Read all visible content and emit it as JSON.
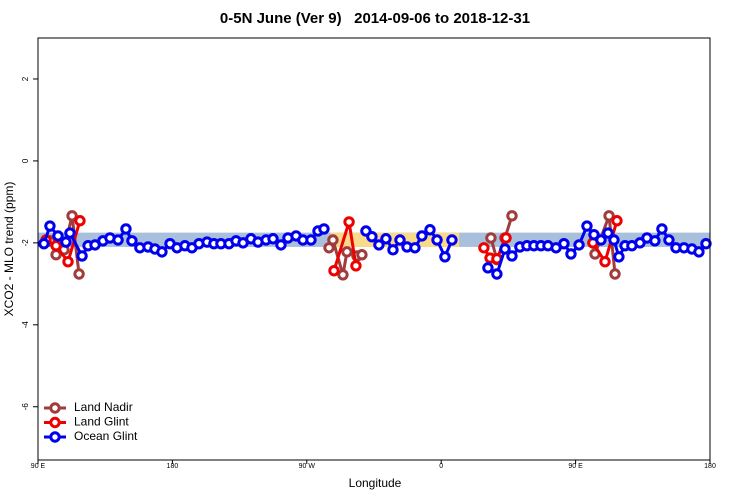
{
  "chart_data": {
    "type": "line",
    "title": "0-5N June (Ver 9)   2014-09-06 to 2018-12-31",
    "x_label": "Longitude",
    "y_label": "XCO2 - MLO trend (ppm)",
    "xlim": [
      90,
      540
    ],
    "xticks": [
      {
        "value": 90,
        "label": "90 E"
      },
      180,
      {
        "value": 270,
        "label": "90 W"
      },
      {
        "value": 360,
        "label": "0"
      },
      {
        "value": 450,
        "label": "90 E"
      },
      {
        "value": 540,
        "label": "180"
      }
    ],
    "ylim": [
      -7.3,
      3
    ],
    "yticks": [
      -6,
      -4,
      -2,
      0,
      2
    ],
    "legend": "bottom-left",
    "bands": [
      {
        "color": "#a9c0dd",
        "xlim": [
          90,
          540
        ],
        "ylim": [
          -2.1,
          -1.75
        ]
      },
      {
        "color": "#f9d98a",
        "xlim": [
          286,
          372
        ],
        "ylim": [
          -2.1,
          -1.75
        ]
      }
    ],
    "series": [
      {
        "name": "Land Nadir",
        "color": "#a03c3c",
        "x": [
          98.0,
          102.1,
          107.4,
          112.8,
          117.5,
          null,
          284.9,
          287.5,
          294.2,
          296.9,
          303.6,
          306.9,
          null,
          393.3,
          397.3,
          402.7,
          407.4,
          null,
          461.6,
          463.0,
          472.4,
          476.4
        ],
        "values": [
          -1.95,
          -2.29,
          -2.17,
          -1.34,
          -2.76,
          null,
          -2.12,
          -1.93,
          -2.78,
          -2.22,
          -2.32,
          -2.29,
          null,
          -1.88,
          -2.41,
          -1.88,
          -1.34,
          null,
          -2.0,
          -2.27,
          -1.34,
          -2.76
        ]
      },
      {
        "name": "Land Glint",
        "color": "#ee0000",
        "x": [
          95.4,
          102.1,
          110.1,
          118.1,
          null,
          288.2,
          298.3,
          302.9,
          null,
          388.6,
          392.7,
          397.3,
          403.4,
          null,
          461.6,
          469.7,
          477.7
        ],
        "values": [
          -1.93,
          -2.07,
          -2.46,
          -1.46,
          null,
          -2.68,
          -1.49,
          -2.56,
          null,
          -2.12,
          -2.37,
          -2.39,
          -1.88,
          null,
          -2.0,
          -2.46,
          -1.46
        ]
      },
      {
        "name": "Ocean Glint",
        "color": "#0000ee",
        "x": [
          94.0,
          98.0,
          103.4,
          108.7,
          111.4,
          119.5,
          123.5,
          128.2,
          133.5,
          138.2,
          143.6,
          148.9,
          152.9,
          158.2,
          163.7,
          168.3,
          173.0,
          178.4,
          183.1,
          188.4,
          193.1,
          197.8,
          203.2,
          207.8,
          212.5,
          217.9,
          222.6,
          227.3,
          232.6,
          237.3,
          242.7,
          247.4,
          252.7,
          257.4,
          262.8,
          267.4,
          272.8,
          277.5,
          281.5,
          null,
          309.6,
          313.6,
          318.3,
          323.0,
          327.7,
          332.4,
          337.1,
          342.4,
          347.1,
          352.5,
          357.2,
          362.5,
          367.2,
          null,
          391.3,
          397.3,
          402.7,
          407.4,
          412.7,
          417.4,
          422.1,
          426.8,
          431.5,
          436.9,
          442.2,
          446.9,
          452.3,
          457.6,
          462.3,
          467.0,
          471.7,
          475.7,
          479.0,
          483.1,
          487.7,
          493.1,
          497.8,
          503.1,
          507.8,
          512.5,
          517.2,
          522.6,
          527.9,
          532.6,
          537.3
        ],
        "values": [
          -2.02,
          -1.59,
          -1.83,
          -1.98,
          -1.76,
          -2.32,
          -2.07,
          -2.05,
          -1.95,
          -1.88,
          -1.93,
          -1.66,
          -1.95,
          -2.12,
          -2.1,
          -2.15,
          -2.22,
          -2.02,
          -2.12,
          -2.07,
          -2.12,
          -2.02,
          -1.98,
          -2.02,
          -2.02,
          -2.02,
          -1.95,
          -2.0,
          -1.9,
          -1.98,
          -1.93,
          -1.9,
          -2.05,
          -1.88,
          -1.83,
          -1.93,
          -1.93,
          -1.71,
          -1.66,
          null,
          -1.71,
          -1.85,
          -2.05,
          -1.9,
          -2.17,
          -1.93,
          -2.1,
          -2.12,
          -1.83,
          -1.68,
          -1.93,
          -2.34,
          -1.93,
          null,
          -2.61,
          -2.76,
          -2.15,
          -2.32,
          -2.1,
          -2.07,
          -2.07,
          -2.07,
          -2.07,
          -2.12,
          -2.02,
          -2.27,
          -2.05,
          -1.59,
          -1.8,
          -1.93,
          -1.76,
          -1.93,
          -2.34,
          -2.07,
          -2.07,
          -2.0,
          -1.88,
          -1.95,
          -1.66,
          -1.93,
          -2.12,
          -2.12,
          -2.15,
          -2.22,
          -2.02
        ]
      }
    ]
  }
}
